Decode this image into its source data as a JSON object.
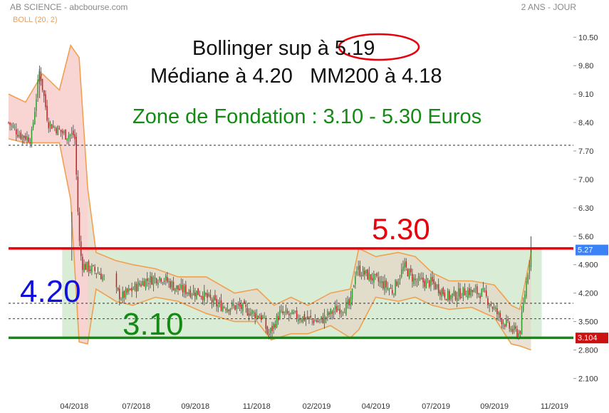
{
  "header": {
    "left": "AB SCIENCE - abcbourse.com",
    "right": "2 ANS - JOUR",
    "indicator": "BOLL (20, 2)"
  },
  "annotations": {
    "line1": "Bollinger sup à 5.19",
    "line2": "Médiane à 4.20   MM200 à 4.18",
    "zone": "Zone de Fondation : 3.10 - 5.30 Euros",
    "upper": "5.30",
    "median": "4.20",
    "lower": "3.10"
  },
  "colors": {
    "resistance": "#e8000b",
    "support": "#138a13",
    "median_text": "#1010dd",
    "zone_fill": "#d9ecd6",
    "band": "#f0a050",
    "band_fill_high": "#f9d3d3",
    "band_fill_low": "#e3d8c6",
    "candle_up": "#2a9e2a",
    "candle_down": "#c62020",
    "last_price_tag": "#3b82f6",
    "support_tag": "#cc1111",
    "circle": "#e8000b"
  },
  "chart_data": {
    "type": "candlestick",
    "title": "AB SCIENCE",
    "indicator": "BOLL (20, 2)",
    "y_ticks": [
      10.5,
      9.8,
      9.1,
      8.4,
      7.7,
      7.0,
      6.3,
      5.6,
      4.9,
      4.2,
      3.5,
      2.8,
      2.1
    ],
    "y_tick_labels": [
      "10.50",
      "9.80",
      "9.10",
      "8.40",
      "7.70",
      "7.00",
      "6.30",
      "5.60",
      "4.900",
      "4.200",
      "3.500",
      "2.800",
      "2.100"
    ],
    "ylim": [
      1.95,
      10.75
    ],
    "x_labels": [
      "04/2018",
      "07/2018",
      "09/2018",
      "11/2018",
      "02/2019",
      "04/2019",
      "07/2019",
      "09/2019",
      "11/2019"
    ],
    "x_label_pos": [
      0.1163,
      0.2261,
      0.3307,
      0.4392,
      0.5454,
      0.6502,
      0.7567,
      0.8602,
      0.9664
    ],
    "resistance": 5.3,
    "support": 3.1,
    "dashed_levels": [
      7.84,
      3.95,
      3.57
    ],
    "zone": [
      3.1,
      5.3
    ],
    "last_price": "5.27",
    "support_tag": "3.104",
    "price_path": [
      [
        0,
        8.4
      ],
      [
        0.02,
        8.1
      ],
      [
        0.04,
        8.0
      ],
      [
        0.055,
        9.7
      ],
      [
        0.07,
        8.4
      ],
      [
        0.1,
        8.1
      ],
      [
        0.117,
        8.1
      ],
      [
        0.125,
        5.5
      ],
      [
        0.13,
        4.9
      ],
      [
        0.16,
        4.7
      ],
      [
        0.18,
        4.4
      ],
      [
        0.2,
        4.1
      ],
      [
        0.24,
        4.5
      ],
      [
        0.27,
        4.6
      ],
      [
        0.3,
        4.3
      ],
      [
        0.34,
        4.2
      ],
      [
        0.37,
        3.9
      ],
      [
        0.41,
        3.85
      ],
      [
        0.45,
        3.6
      ],
      [
        0.46,
        3.15
      ],
      [
        0.48,
        3.7
      ],
      [
        0.52,
        3.6
      ],
      [
        0.55,
        3.5
      ],
      [
        0.58,
        3.8
      ],
      [
        0.605,
        3.9
      ],
      [
        0.615,
        4.8
      ],
      [
        0.64,
        4.6
      ],
      [
        0.665,
        4.4
      ],
      [
        0.68,
        4.25
      ],
      [
        0.7,
        4.85
      ],
      [
        0.72,
        4.5
      ],
      [
        0.75,
        4.45
      ],
      [
        0.78,
        4.1
      ],
      [
        0.81,
        4.25
      ],
      [
        0.84,
        4.2
      ],
      [
        0.87,
        3.6
      ],
      [
        0.89,
        3.3
      ],
      [
        0.905,
        3.2
      ],
      [
        0.915,
        4.3
      ],
      [
        0.925,
        5.27
      ]
    ],
    "boll_upper_path": [
      [
        0,
        9.1
      ],
      [
        0.03,
        8.9
      ],
      [
        0.06,
        9.6
      ],
      [
        0.09,
        9.2
      ],
      [
        0.11,
        10.3
      ],
      [
        0.125,
        10.0
      ],
      [
        0.14,
        6.8
      ],
      [
        0.155,
        5.2
      ],
      [
        0.19,
        5.0
      ],
      [
        0.22,
        4.9
      ],
      [
        0.26,
        4.8
      ],
      [
        0.3,
        4.6
      ],
      [
        0.35,
        4.6
      ],
      [
        0.4,
        4.2
      ],
      [
        0.44,
        4.3
      ],
      [
        0.47,
        3.9
      ],
      [
        0.5,
        4.1
      ],
      [
        0.53,
        3.9
      ],
      [
        0.57,
        4.2
      ],
      [
        0.605,
        4.3
      ],
      [
        0.62,
        5.3
      ],
      [
        0.65,
        5.1
      ],
      [
        0.69,
        5.2
      ],
      [
        0.72,
        5.1
      ],
      [
        0.75,
        4.7
      ],
      [
        0.78,
        4.5
      ],
      [
        0.82,
        4.5
      ],
      [
        0.86,
        4.4
      ],
      [
        0.89,
        3.9
      ],
      [
        0.905,
        3.8
      ],
      [
        0.925,
        5.19
      ]
    ],
    "boll_lower_path": [
      [
        0,
        8.0
      ],
      [
        0.03,
        7.9
      ],
      [
        0.06,
        7.9
      ],
      [
        0.09,
        7.9
      ],
      [
        0.11,
        6.5
      ],
      [
        0.125,
        3.0
      ],
      [
        0.14,
        2.95
      ],
      [
        0.155,
        4.3
      ],
      [
        0.19,
        4.0
      ],
      [
        0.22,
        3.9
      ],
      [
        0.26,
        4.1
      ],
      [
        0.3,
        4.0
      ],
      [
        0.35,
        3.7
      ],
      [
        0.4,
        3.5
      ],
      [
        0.44,
        3.5
      ],
      [
        0.465,
        3.05
      ],
      [
        0.5,
        3.2
      ],
      [
        0.53,
        3.2
      ],
      [
        0.57,
        3.4
      ],
      [
        0.605,
        3.1
      ],
      [
        0.62,
        3.3
      ],
      [
        0.65,
        4.1
      ],
      [
        0.69,
        4.0
      ],
      [
        0.72,
        4.1
      ],
      [
        0.75,
        3.9
      ],
      [
        0.78,
        3.8
      ],
      [
        0.82,
        3.85
      ],
      [
        0.86,
        3.6
      ],
      [
        0.89,
        2.95
      ],
      [
        0.905,
        2.9
      ],
      [
        0.925,
        2.8
      ]
    ]
  }
}
